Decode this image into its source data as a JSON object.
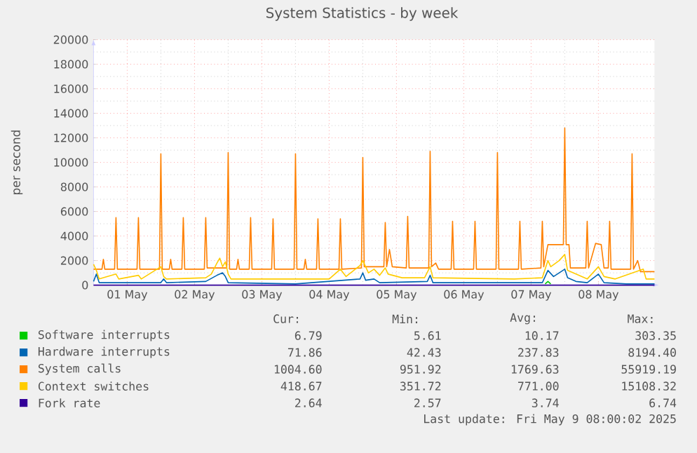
{
  "chart_data": {
    "type": "line",
    "title": "System Statistics - by week",
    "ylabel": "per second",
    "xlim": [
      "2025-05-01T00:00",
      "2025-05-09T08:00"
    ],
    "xticks": [
      {
        "value": "2025-05-01T12:00",
        "label": "01 May"
      },
      {
        "value": "2025-05-02T12:00",
        "label": "02 May"
      },
      {
        "value": "2025-05-03T12:00",
        "label": "03 May"
      },
      {
        "value": "2025-05-04T12:00",
        "label": "04 May"
      },
      {
        "value": "2025-05-05T12:00",
        "label": "05 May"
      },
      {
        "value": "2025-05-06T12:00",
        "label": "06 May"
      },
      {
        "value": "2025-05-07T12:00",
        "label": "07 May"
      },
      {
        "value": "2025-05-08T12:00",
        "label": "08 May"
      }
    ],
    "ylim": [
      0,
      20000
    ],
    "yticks": [
      0,
      2000,
      4000,
      6000,
      8000,
      10000,
      12000,
      14000,
      16000,
      18000,
      20000
    ],
    "grid": true,
    "legend": "bottom",
    "series": [
      {
        "name": "Software interrupts",
        "color": "#00cc00",
        "x": [
          "2025-05-07T17:00",
          "2025-05-07T18:00",
          "2025-05-07T19:00"
        ],
        "values": [
          100,
          300,
          100
        ]
      },
      {
        "name": "Hardware interrupts",
        "color": "#0066b3",
        "x": [
          "2025-05-01T00:00",
          "2025-05-01T01:00",
          "2025-05-01T02:00",
          "2025-05-02T00:00",
          "2025-05-02T01:00",
          "2025-05-02T02:00",
          "2025-05-02T16:00",
          "2025-05-02T20:00",
          "2025-05-02T22:00",
          "2025-05-02T23:00",
          "2025-05-03T00:00",
          "2025-05-04T00:00",
          "2025-05-04T23:00",
          "2025-05-05T00:00",
          "2025-05-05T01:00",
          "2025-05-05T04:00",
          "2025-05-05T06:00",
          "2025-05-05T23:00",
          "2025-05-06T00:00",
          "2025-05-06T01:00",
          "2025-05-07T00:00",
          "2025-05-07T16:00",
          "2025-05-07T18:00",
          "2025-05-07T20:00",
          "2025-05-07T22:00",
          "2025-05-08T00:00",
          "2025-05-08T01:00",
          "2025-05-08T04:00",
          "2025-05-08T08:00",
          "2025-05-08T12:00",
          "2025-05-08T14:00",
          "2025-05-08T22:00",
          "2025-05-09T08:00"
        ],
        "values": [
          300,
          900,
          200,
          200,
          500,
          200,
          300,
          800,
          1000,
          700,
          200,
          100,
          500,
          1000,
          400,
          500,
          200,
          300,
          800,
          200,
          200,
          200,
          1200,
          700,
          1000,
          1300,
          600,
          300,
          200,
          900,
          200,
          100,
          100
        ]
      },
      {
        "name": "System calls",
        "color": "#ff8000",
        "x": [
          "2025-05-01T00:00",
          "2025-05-01T03:00",
          "2025-05-01T03:30",
          "2025-05-01T04:00",
          "2025-05-01T07:30",
          "2025-05-01T08:00",
          "2025-05-01T08:30",
          "2025-05-01T15:30",
          "2025-05-01T16:00",
          "2025-05-01T16:30",
          "2025-05-01T23:30",
          "2025-05-02T00:00",
          "2025-05-02T00:30",
          "2025-05-02T03:00",
          "2025-05-02T03:30",
          "2025-05-02T04:00",
          "2025-05-02T07:30",
          "2025-05-02T08:00",
          "2025-05-02T08:30",
          "2025-05-02T15:30",
          "2025-05-02T16:00",
          "2025-05-02T16:30",
          "2025-05-02T23:30",
          "2025-05-03T00:00",
          "2025-05-03T00:30",
          "2025-05-03T03:00",
          "2025-05-03T03:30",
          "2025-05-03T04:00",
          "2025-05-03T07:30",
          "2025-05-03T08:00",
          "2025-05-03T08:30",
          "2025-05-03T15:30",
          "2025-05-03T16:00",
          "2025-05-03T16:30",
          "2025-05-03T23:30",
          "2025-05-04T00:00",
          "2025-05-04T00:30",
          "2025-05-04T03:00",
          "2025-05-04T03:30",
          "2025-05-04T04:00",
          "2025-05-04T07:30",
          "2025-05-04T08:00",
          "2025-05-04T08:30",
          "2025-05-04T15:30",
          "2025-05-04T16:00",
          "2025-05-04T16:30",
          "2025-05-04T23:30",
          "2025-05-05T00:00",
          "2025-05-05T00:30",
          "2025-05-05T07:30",
          "2025-05-05T08:00",
          "2025-05-05T08:30",
          "2025-05-05T09:30",
          "2025-05-05T10:30",
          "2025-05-05T15:30",
          "2025-05-05T16:00",
          "2025-05-05T16:30",
          "2025-05-05T23:30",
          "2025-05-06T00:00",
          "2025-05-06T00:30",
          "2025-05-06T02:00",
          "2025-05-06T03:00",
          "2025-05-06T07:30",
          "2025-05-06T08:00",
          "2025-05-06T08:30",
          "2025-05-06T15:30",
          "2025-05-06T16:00",
          "2025-05-06T16:30",
          "2025-05-06T23:30",
          "2025-05-07T00:00",
          "2025-05-07T00:30",
          "2025-05-07T07:30",
          "2025-05-07T08:00",
          "2025-05-07T08:30",
          "2025-05-07T15:30",
          "2025-05-07T16:00",
          "2025-05-07T16:30",
          "2025-05-07T18:00",
          "2025-05-07T23:30",
          "2025-05-08T00:00",
          "2025-05-08T00:30",
          "2025-05-08T01:30",
          "2025-05-08T02:00",
          "2025-05-08T07:30",
          "2025-05-08T08:00",
          "2025-05-08T08:30",
          "2025-05-08T11:00",
          "2025-05-08T13:00",
          "2025-05-08T14:00",
          "2025-05-08T15:30",
          "2025-05-08T16:00",
          "2025-05-08T16:30",
          "2025-05-08T23:30",
          "2025-05-09T00:00",
          "2025-05-09T00:30",
          "2025-05-09T02:00",
          "2025-05-09T03:00",
          "2025-05-09T08:00"
        ],
        "values": [
          1300,
          1300,
          2100,
          1300,
          1300,
          5500,
          1300,
          1300,
          5500,
          1300,
          1300,
          10700,
          1300,
          1300,
          2100,
          1300,
          1300,
          5500,
          1300,
          1300,
          5500,
          1400,
          1400,
          10800,
          1300,
          1300,
          2100,
          1300,
          1300,
          5500,
          1300,
          1300,
          5400,
          1300,
          1300,
          10700,
          1300,
          1300,
          2100,
          1300,
          1300,
          5400,
          1300,
          1300,
          5400,
          1300,
          1400,
          10400,
          1500,
          1500,
          5100,
          1500,
          2900,
          1500,
          1400,
          5600,
          1400,
          1400,
          10900,
          1500,
          1800,
          1300,
          1300,
          5200,
          1300,
          1300,
          5200,
          1300,
          1300,
          10800,
          1300,
          1300,
          5200,
          1300,
          1400,
          5200,
          1500,
          3300,
          3300,
          12800,
          3300,
          3300,
          1400,
          1400,
          5200,
          1400,
          3400,
          3300,
          1400,
          1400,
          5200,
          1300,
          1300,
          10700,
          1300,
          2000,
          1100,
          1100
        ]
      },
      {
        "name": "Context switches",
        "color": "#ffcc00",
        "x": [
          "2025-05-01T00:00",
          "2025-05-01T01:00",
          "2025-05-01T02:00",
          "2025-05-01T08:00",
          "2025-05-01T09:00",
          "2025-05-01T16:00",
          "2025-05-01T17:00",
          "2025-05-02T00:00",
          "2025-05-02T01:00",
          "2025-05-02T02:00",
          "2025-05-02T16:00",
          "2025-05-02T18:00",
          "2025-05-02T20:00",
          "2025-05-02T21:00",
          "2025-05-02T22:00",
          "2025-05-02T23:00",
          "2025-05-03T00:00",
          "2025-05-03T01:00",
          "2025-05-04T00:00",
          "2025-05-04T12:00",
          "2025-05-04T16:00",
          "2025-05-04T18:00",
          "2025-05-04T23:00",
          "2025-05-05T00:00",
          "2025-05-05T02:00",
          "2025-05-05T04:00",
          "2025-05-05T06:00",
          "2025-05-05T08:00",
          "2025-05-05T09:00",
          "2025-05-05T14:00",
          "2025-05-05T22:00",
          "2025-05-06T00:00",
          "2025-05-06T01:00",
          "2025-05-07T06:00",
          "2025-05-07T16:00",
          "2025-05-07T18:00",
          "2025-05-07T19:00",
          "2025-05-07T22:00",
          "2025-05-08T00:00",
          "2025-05-08T01:00",
          "2025-05-08T04:00",
          "2025-05-08T08:00",
          "2025-05-08T12:00",
          "2025-05-08T14:00",
          "2025-05-08T18:00",
          "2025-05-09T04:00",
          "2025-05-09T05:00",
          "2025-05-09T08:00"
        ],
        "values": [
          1700,
          1200,
          500,
          900,
          500,
          800,
          500,
          1500,
          700,
          500,
          600,
          900,
          1800,
          2200,
          1500,
          1900,
          900,
          500,
          500,
          500,
          1300,
          700,
          1600,
          2000,
          1000,
          1300,
          800,
          1400,
          900,
          600,
          600,
          1500,
          600,
          500,
          600,
          2000,
          1500,
          2000,
          2500,
          1200,
          900,
          500,
          1500,
          700,
          500,
          1300,
          500,
          500
        ]
      },
      {
        "name": "Fork rate",
        "color": "#330099",
        "x": [
          "2025-05-01T00:00",
          "2025-05-09T08:00"
        ],
        "values": [
          0,
          0
        ]
      }
    ],
    "annotations": [
      "Cur:",
      "Min:",
      "Avg:",
      "Max:",
      "6.79",
      "5.61",
      "10.17",
      "303.35",
      "71.86",
      "42.43",
      "237.83",
      "8194.40",
      "1004.60",
      "951.92",
      "1769.63",
      "55919.19",
      "418.67",
      "351.72",
      "771.00",
      "15108.32",
      "2.64",
      "2.57",
      "3.74",
      "6.74",
      "Last update: Fri May  9 08:00:02 2025"
    ]
  }
}
